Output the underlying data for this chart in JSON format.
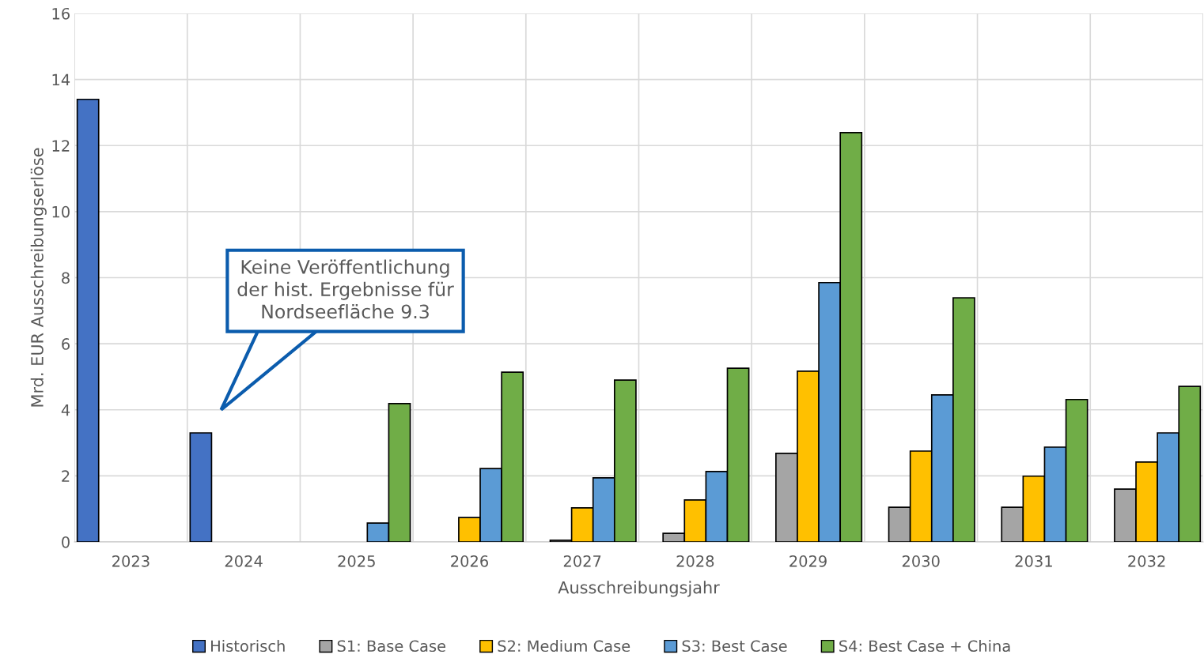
{
  "chart_data": {
    "type": "bar",
    "xlabel": "Ausschreibungsjahr",
    "ylabel": "Mrd. EUR Ausschreibungserlöse",
    "categories": [
      "2023",
      "2024",
      "2025",
      "2026",
      "2027",
      "2028",
      "2029",
      "2030",
      "2031",
      "2032"
    ],
    "series": [
      {
        "name": "Historisch",
        "color": "#4472c4",
        "values": [
          13.4,
          3.3,
          null,
          null,
          null,
          null,
          null,
          null,
          null,
          null
        ]
      },
      {
        "name": "S1: Base Case",
        "color": "#a5a5a5",
        "values": [
          null,
          null,
          null,
          null,
          0.05,
          0.26,
          2.68,
          1.05,
          1.05,
          1.6
        ]
      },
      {
        "name": "S2: Medium Case",
        "color": "#ffc000",
        "values": [
          null,
          null,
          null,
          0.74,
          1.03,
          1.27,
          5.17,
          2.75,
          1.99,
          2.42
        ]
      },
      {
        "name": "S3: Best Case",
        "color": "#5b9bd5",
        "values": [
          null,
          null,
          0.57,
          2.22,
          1.94,
          2.13,
          7.85,
          4.45,
          2.87,
          3.3
        ]
      },
      {
        "name": "S4: Best Case + China",
        "color": "#70ad47",
        "values": [
          null,
          null,
          4.19,
          5.14,
          4.9,
          5.26,
          12.39,
          7.39,
          4.31,
          4.71
        ]
      }
    ],
    "ylim": [
      0,
      16
    ],
    "yticks": [
      0,
      2,
      4,
      6,
      8,
      10,
      12,
      14,
      16
    ],
    "grid": true,
    "legend": "bottom",
    "annotations": [
      "Keine Veröffentlichung\nder hist. Ergebnisse für\nNordseefläche 9.3"
    ]
  }
}
